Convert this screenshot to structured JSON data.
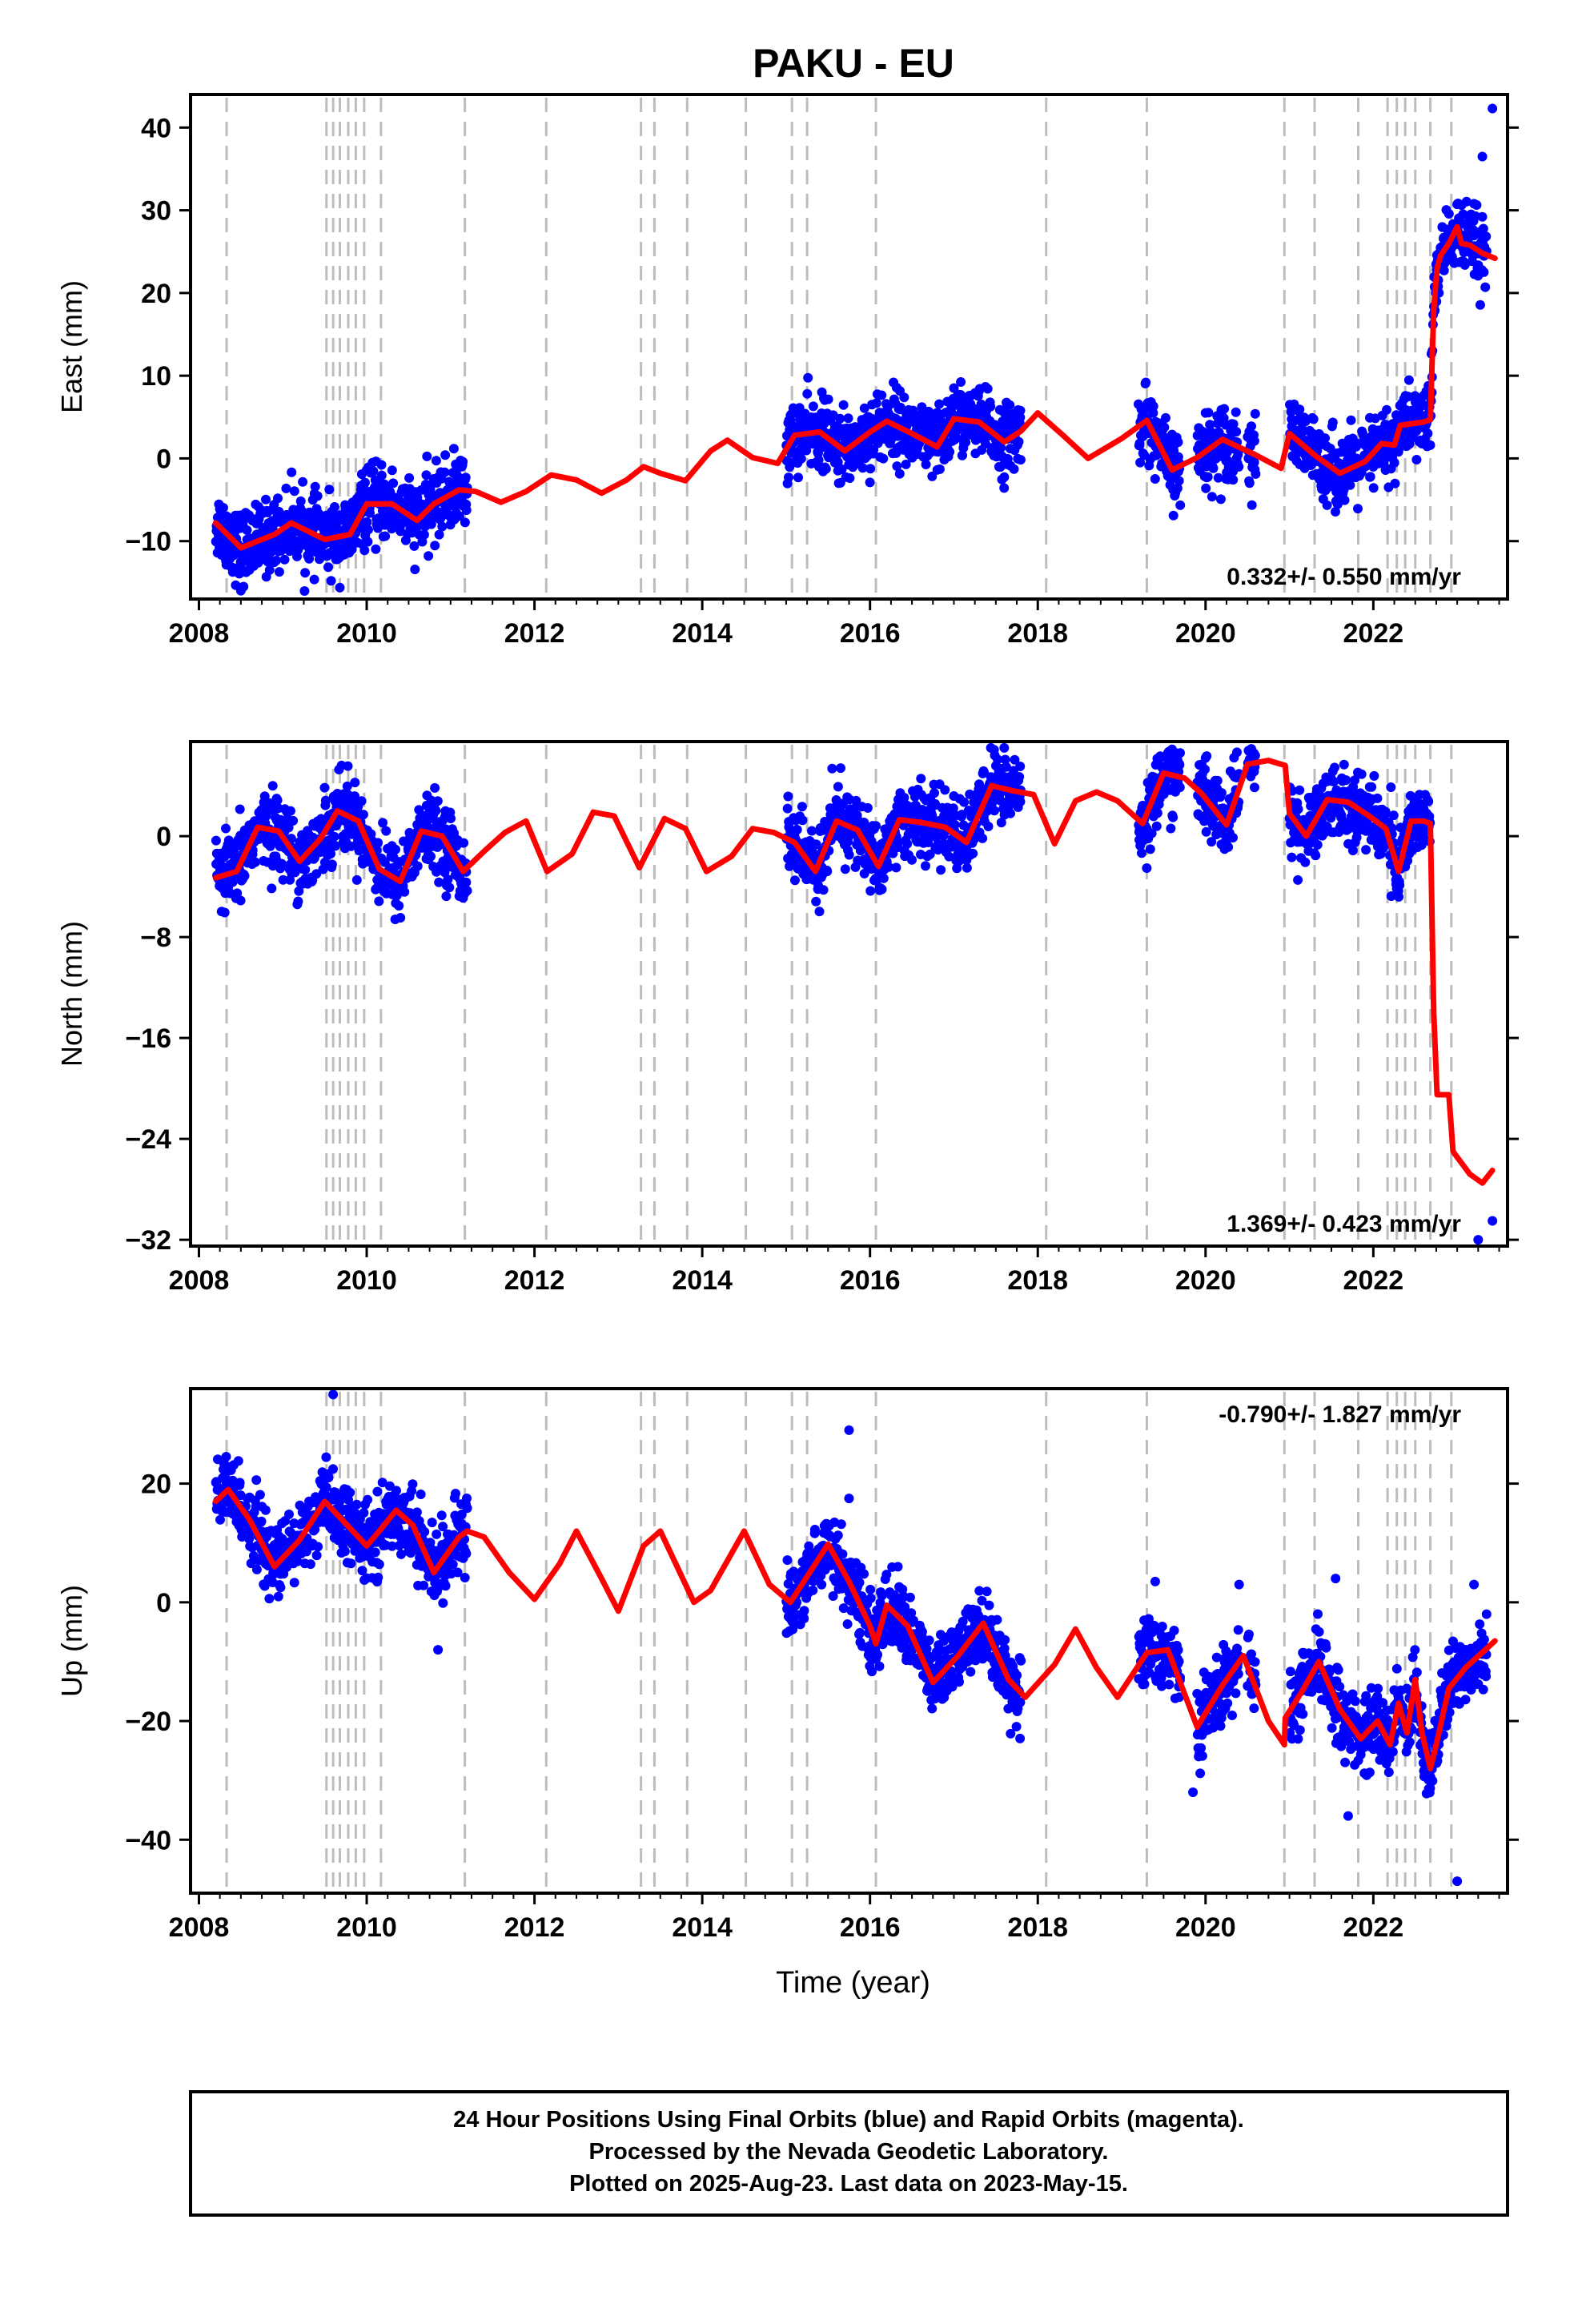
{
  "figure": {
    "title": "PAKU - EU",
    "footer_lines": [
      "24 Hour Positions Using Final Orbits (blue) and Rapid Orbits (magenta).",
      "Processed by the Nevada Geodetic Laboratory.",
      "Plotted on 2025-Aug-23. Last data on 2023-May-15."
    ],
    "colors": {
      "final_orbits": "#0000ff",
      "model": "#ff0000",
      "event_lines": "#bdbdbd",
      "frame": "#000000"
    }
  },
  "chart_data": [
    {
      "type": "scatter",
      "id": "east",
      "ylabel": "East (mm)",
      "xlabel": "",
      "xlim": [
        2007.9,
        2023.6
      ],
      "ylim": [
        -17,
        44
      ],
      "xticks": [
        2008,
        2010,
        2012,
        2014,
        2016,
        2018,
        2020,
        2022
      ],
      "yticks": [
        -10,
        0,
        10,
        20,
        30,
        40
      ],
      "rate_label": "0.332+/- 0.550 mm/yr",
      "rate_position": "bottom-right",
      "grid": false,
      "event_lines": [
        2008.33,
        2009.52,
        2009.6,
        2009.68,
        2009.78,
        2009.87,
        2009.97,
        2010.17,
        2011.17,
        2012.14,
        2013.27,
        2013.43,
        2013.82,
        2014.52,
        2015.07,
        2015.25,
        2016.07,
        2018.1,
        2019.3,
        2020.94,
        2021.3,
        2021.82,
        2022.17,
        2022.28,
        2022.38,
        2022.5,
        2022.68,
        2022.93
      ],
      "obs_segments": [
        [
          2008.2,
          2011.2
        ],
        [
          2015.0,
          2017.8
        ],
        [
          2019.2,
          2019.7
        ],
        [
          2019.9,
          2020.4
        ],
        [
          2020.5,
          2020.6
        ],
        [
          2021.0,
          2023.35
        ]
      ],
      "model_points": [
        [
          2008.2,
          -7.8
        ],
        [
          2008.5,
          -10.8
        ],
        [
          2008.9,
          -9.2
        ],
        [
          2009.1,
          -7.8
        ],
        [
          2009.5,
          -9.8
        ],
        [
          2009.8,
          -9.2
        ],
        [
          2010.0,
          -5.5
        ],
        [
          2010.3,
          -5.5
        ],
        [
          2010.6,
          -7.5
        ],
        [
          2010.8,
          -5.5
        ],
        [
          2011.1,
          -3.8
        ],
        [
          2011.3,
          -4.0
        ],
        [
          2011.6,
          -5.3
        ],
        [
          2011.9,
          -4.0
        ],
        [
          2012.2,
          -2.0
        ],
        [
          2012.5,
          -2.6
        ],
        [
          2012.8,
          -4.2
        ],
        [
          2013.1,
          -2.6
        ],
        [
          2013.3,
          -1.0
        ],
        [
          2013.5,
          -1.8
        ],
        [
          2013.8,
          -2.7
        ],
        [
          2014.1,
          0.9
        ],
        [
          2014.3,
          2.2
        ],
        [
          2014.6,
          0.1
        ],
        [
          2014.9,
          -0.6
        ],
        [
          2015.1,
          2.8
        ],
        [
          2015.4,
          3.2
        ],
        [
          2015.7,
          0.9
        ],
        [
          2016.0,
          3.2
        ],
        [
          2016.2,
          4.5
        ],
        [
          2016.5,
          3.0
        ],
        [
          2016.8,
          1.4
        ],
        [
          2017.0,
          4.8
        ],
        [
          2017.3,
          4.4
        ],
        [
          2017.6,
          2.0
        ],
        [
          2017.8,
          3.3
        ],
        [
          2018.0,
          5.5
        ],
        [
          2018.3,
          2.8
        ],
        [
          2018.6,
          0.0
        ],
        [
          2019.0,
          2.4
        ],
        [
          2019.3,
          4.6
        ],
        [
          2019.6,
          -1.4
        ],
        [
          2019.9,
          0.1
        ],
        [
          2020.2,
          2.3
        ],
        [
          2020.6,
          0.4
        ],
        [
          2020.9,
          -1.2
        ],
        [
          2021.0,
          3.0
        ],
        [
          2021.3,
          0.4
        ],
        [
          2021.6,
          -1.8
        ],
        [
          2021.9,
          -0.4
        ],
        [
          2022.1,
          1.8
        ],
        [
          2022.25,
          1.6
        ],
        [
          2022.32,
          4.0
        ],
        [
          2022.6,
          4.4
        ],
        [
          2022.68,
          4.7
        ],
        [
          2022.72,
          18.0
        ],
        [
          2022.76,
          23.0
        ],
        [
          2022.8,
          24.5
        ],
        [
          2022.9,
          26.0
        ],
        [
          2023.0,
          28.0
        ],
        [
          2023.05,
          26.0
        ],
        [
          2023.15,
          25.8
        ],
        [
          2023.3,
          24.8
        ],
        [
          2023.45,
          24.2
        ]
      ],
      "outlier_points": [
        [
          2023.2,
          30.8
        ],
        [
          2023.3,
          36.5
        ],
        [
          2023.42,
          42.3
        ],
        [
          2017.0,
          8.5
        ],
        [
          2020.0,
          5.5
        ],
        [
          2008.5,
          -16.0
        ]
      ]
    },
    {
      "type": "scatter",
      "id": "north",
      "ylabel": "North (mm)",
      "xlabel": "",
      "xlim": [
        2007.9,
        2023.6
      ],
      "ylim": [
        -32.5,
        7.5
      ],
      "xticks": [
        2008,
        2010,
        2012,
        2014,
        2016,
        2018,
        2020,
        2022
      ],
      "yticks": [
        -32,
        -24,
        -16,
        -8,
        0
      ],
      "rate_label": "1.369+/- 0.423 mm/yr",
      "rate_position": "bottom-right",
      "grid": false,
      "event_lines": [
        2008.33,
        2009.52,
        2009.6,
        2009.68,
        2009.78,
        2009.87,
        2009.97,
        2010.17,
        2011.17,
        2012.14,
        2013.27,
        2013.43,
        2013.82,
        2014.52,
        2015.07,
        2015.25,
        2016.07,
        2018.1,
        2019.3,
        2020.94,
        2021.3,
        2021.82,
        2022.17,
        2022.28,
        2022.38,
        2022.5,
        2022.68,
        2022.93
      ],
      "obs_segments": [
        [
          2008.2,
          2011.2
        ],
        [
          2015.0,
          2017.8
        ],
        [
          2019.2,
          2019.7
        ],
        [
          2019.9,
          2020.4
        ],
        [
          2020.5,
          2020.6
        ],
        [
          2021.0,
          2022.68
        ]
      ],
      "model_points": [
        [
          2008.2,
          -3.3
        ],
        [
          2008.45,
          -2.8
        ],
        [
          2008.7,
          0.7
        ],
        [
          2008.95,
          0.4
        ],
        [
          2009.2,
          -2.0
        ],
        [
          2009.45,
          -0.2
        ],
        [
          2009.65,
          2.0
        ],
        [
          2009.9,
          1.2
        ],
        [
          2010.15,
          -2.6
        ],
        [
          2010.4,
          -3.6
        ],
        [
          2010.65,
          0.4
        ],
        [
          2010.9,
          0.0
        ],
        [
          2011.15,
          -2.8
        ],
        [
          2011.4,
          -1.2
        ],
        [
          2011.65,
          0.3
        ],
        [
          2011.9,
          1.2
        ],
        [
          2012.15,
          -2.8
        ],
        [
          2012.45,
          -1.4
        ],
        [
          2012.7,
          1.9
        ],
        [
          2012.95,
          1.6
        ],
        [
          2013.25,
          -2.5
        ],
        [
          2013.55,
          1.4
        ],
        [
          2013.8,
          0.6
        ],
        [
          2014.05,
          -2.8
        ],
        [
          2014.35,
          -1.6
        ],
        [
          2014.6,
          0.6
        ],
        [
          2014.85,
          0.3
        ],
        [
          2015.1,
          -0.5
        ],
        [
          2015.35,
          -2.8
        ],
        [
          2015.6,
          1.2
        ],
        [
          2015.85,
          0.5
        ],
        [
          2016.1,
          -2.4
        ],
        [
          2016.35,
          1.3
        ],
        [
          2016.6,
          1.1
        ],
        [
          2016.9,
          0.7
        ],
        [
          2017.15,
          -0.5
        ],
        [
          2017.45,
          4.0
        ],
        [
          2017.7,
          3.6
        ],
        [
          2017.95,
          3.3
        ],
        [
          2018.2,
          -0.6
        ],
        [
          2018.45,
          2.8
        ],
        [
          2018.7,
          3.5
        ],
        [
          2018.95,
          2.8
        ],
        [
          2019.25,
          1.0
        ],
        [
          2019.5,
          5.0
        ],
        [
          2019.75,
          4.6
        ],
        [
          2019.95,
          3.4
        ],
        [
          2020.25,
          0.9
        ],
        [
          2020.5,
          5.7
        ],
        [
          2020.75,
          6.0
        ],
        [
          2020.95,
          5.6
        ],
        [
          2021.0,
          1.8
        ],
        [
          2021.2,
          0.0
        ],
        [
          2021.45,
          2.9
        ],
        [
          2021.7,
          2.7
        ],
        [
          2021.95,
          1.6
        ],
        [
          2022.15,
          0.6
        ],
        [
          2022.3,
          -2.8
        ],
        [
          2022.45,
          1.2
        ],
        [
          2022.6,
          1.2
        ],
        [
          2022.68,
          1.0
        ],
        [
          2022.72,
          -14.0
        ],
        [
          2022.76,
          -20.5
        ],
        [
          2022.9,
          -20.5
        ],
        [
          2022.95,
          -25.0
        ],
        [
          2023.15,
          -26.8
        ],
        [
          2023.3,
          -27.5
        ],
        [
          2023.42,
          -26.5
        ]
      ],
      "outlier_points": [
        [
          2023.42,
          -30.5
        ],
        [
          2023.25,
          -32.0
        ],
        [
          2015.65,
          5.4
        ],
        [
          2017.6,
          7.0
        ],
        [
          2020.0,
          6.2
        ],
        [
          2009.7,
          5.6
        ]
      ]
    },
    {
      "type": "scatter",
      "id": "up",
      "ylabel": "Up (mm)",
      "xlabel": "Time (year)",
      "xlim": [
        2007.9,
        2023.6
      ],
      "ylim": [
        -49,
        36
      ],
      "xticks": [
        2008,
        2010,
        2012,
        2014,
        2016,
        2018,
        2020,
        2022
      ],
      "yticks": [
        -40,
        -20,
        0,
        20
      ],
      "rate_label": "-0.790+/- 1.827 mm/yr",
      "rate_position": "top-right",
      "grid": false,
      "event_lines": [
        2008.33,
        2009.52,
        2009.6,
        2009.68,
        2009.78,
        2009.87,
        2009.97,
        2010.17,
        2011.17,
        2012.14,
        2013.27,
        2013.43,
        2013.82,
        2014.52,
        2015.07,
        2015.25,
        2016.07,
        2018.1,
        2019.3,
        2020.94,
        2021.3,
        2021.82,
        2022.17,
        2022.28,
        2022.38,
        2022.5,
        2022.68,
        2022.93
      ],
      "obs_segments": [
        [
          2008.2,
          2011.2
        ],
        [
          2015.0,
          2017.8
        ],
        [
          2019.2,
          2019.7
        ],
        [
          2019.9,
          2020.4
        ],
        [
          2020.5,
          2020.6
        ],
        [
          2021.0,
          2023.35
        ]
      ],
      "model_points": [
        [
          2008.2,
          17.0
        ],
        [
          2008.35,
          19.0
        ],
        [
          2008.6,
          14.0
        ],
        [
          2008.9,
          6.0
        ],
        [
          2009.2,
          10.5
        ],
        [
          2009.5,
          17.0
        ],
        [
          2009.8,
          12.5
        ],
        [
          2010.0,
          9.5
        ],
        [
          2010.15,
          12.0
        ],
        [
          2010.35,
          15.5
        ],
        [
          2010.55,
          13.0
        ],
        [
          2010.8,
          5.0
        ],
        [
          2011.1,
          11.0
        ],
        [
          2011.2,
          12.0
        ],
        [
          2011.4,
          11.0
        ],
        [
          2011.7,
          5.0
        ],
        [
          2012.0,
          0.5
        ],
        [
          2012.3,
          6.5
        ],
        [
          2012.5,
          12.0
        ],
        [
          2012.8,
          4.0
        ],
        [
          2013.0,
          -1.5
        ],
        [
          2013.3,
          9.5
        ],
        [
          2013.5,
          12.0
        ],
        [
          2013.9,
          0.0
        ],
        [
          2014.1,
          2.0
        ],
        [
          2014.5,
          12.0
        ],
        [
          2014.8,
          3.0
        ],
        [
          2015.05,
          0.0
        ],
        [
          2015.5,
          9.8
        ],
        [
          2015.75,
          3.5
        ],
        [
          2016.0,
          -4.0
        ],
        [
          2016.07,
          -7.0
        ],
        [
          2016.2,
          -0.5
        ],
        [
          2016.45,
          -4.0
        ],
        [
          2016.75,
          -13.5
        ],
        [
          2017.05,
          -9.0
        ],
        [
          2017.35,
          -3.5
        ],
        [
          2017.65,
          -13.0
        ],
        [
          2017.85,
          -16.0
        ],
        [
          2018.2,
          -10.5
        ],
        [
          2018.45,
          -4.5
        ],
        [
          2018.7,
          -11.0
        ],
        [
          2018.95,
          -16.0
        ],
        [
          2019.3,
          -8.5
        ],
        [
          2019.55,
          -8.0
        ],
        [
          2019.9,
          -21.0
        ],
        [
          2020.2,
          -14.0
        ],
        [
          2020.45,
          -9.0
        ],
        [
          2020.75,
          -20.0
        ],
        [
          2020.94,
          -24.0
        ],
        [
          2020.95,
          -19.5
        ],
        [
          2021.15,
          -15.0
        ],
        [
          2021.35,
          -10.0
        ],
        [
          2021.6,
          -18.0
        ],
        [
          2021.85,
          -23.0
        ],
        [
          2022.05,
          -20.0
        ],
        [
          2022.2,
          -24.0
        ],
        [
          2022.3,
          -17.0
        ],
        [
          2022.4,
          -22.0
        ],
        [
          2022.5,
          -13.0
        ],
        [
          2022.58,
          -22.0
        ],
        [
          2022.68,
          -28.0
        ],
        [
          2022.75,
          -24.0
        ],
        [
          2022.9,
          -14.5
        ],
        [
          2023.1,
          -11.0
        ],
        [
          2023.45,
          -6.5
        ]
      ],
      "outlier_points": [
        [
          2009.6,
          35.0
        ],
        [
          2015.75,
          29.0
        ],
        [
          2015.75,
          17.5
        ],
        [
          2019.4,
          3.5
        ],
        [
          2020.4,
          3.0
        ],
        [
          2021.55,
          4.0
        ],
        [
          2023.2,
          3.0
        ],
        [
          2023.35,
          -2.0
        ],
        [
          2023.0,
          -47.0
        ],
        [
          2019.85,
          -32.0
        ],
        [
          2021.7,
          -36.0
        ],
        [
          2010.85,
          -8.0
        ]
      ]
    }
  ]
}
